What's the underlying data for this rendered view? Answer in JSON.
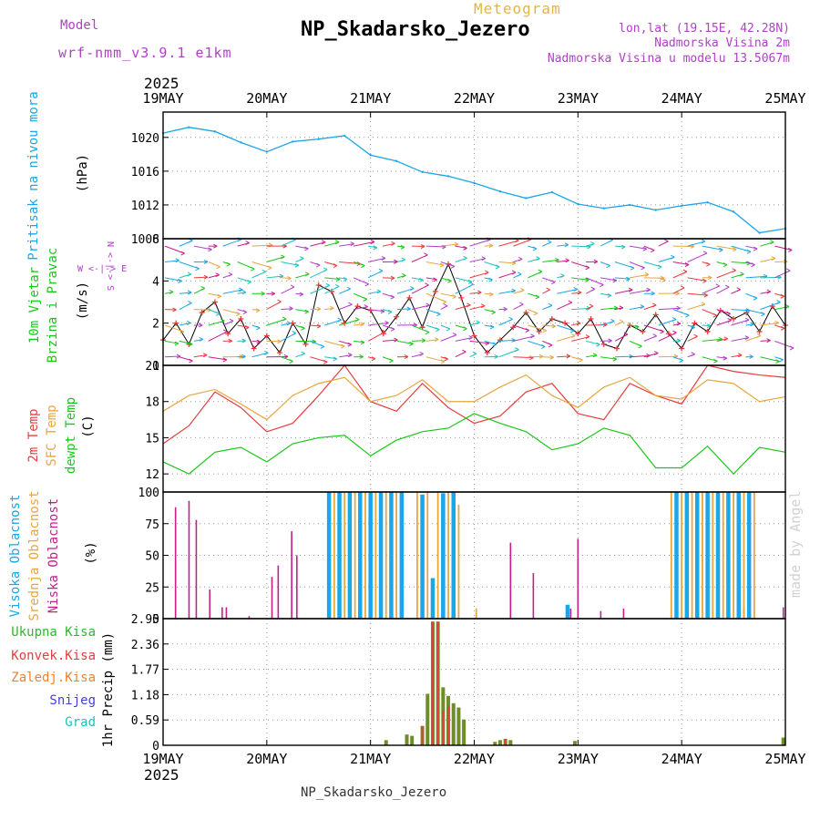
{
  "header": {
    "model_label": "Model",
    "model_name": "wrf-nmm_v3.9.1 e1km",
    "meteogram_label": "Meteogram",
    "station": "NP_Skadarsko_Jezero",
    "lonlat": "lon,lat (19.15E, 42.28N)",
    "elevation": "Nadmorska Visina 2m",
    "model_elevation": "Nadmorska Visina u modelu 13.5067m"
  },
  "footer": {
    "station": "NP_Skadarsko_Jezero",
    "credit": "made by Angel"
  },
  "colors": {
    "pressure": "#1aa6e8",
    "temp2m": "#e83c3c",
    "sfc": "#e6a640",
    "dewpt": "#18c818",
    "high_cloud": "#1aa6e8",
    "mid_cloud": "#e6a640",
    "low_cloud": "#c81e8c",
    "total_precip": "#2eb82e",
    "conv_precip": "#e83c3c",
    "frz_precip": "#f08030",
    "snow": "#4040e0",
    "grad": "#20c0c0",
    "wind_purple": "#b040c8"
  },
  "chart_data": [
    {
      "type": "line",
      "panel": "pressure",
      "ylabel": "Pritisak na nivou mora",
      "unit": "(hPa)",
      "year": "2025",
      "x_ticks": [
        "19MAY",
        "20MAY",
        "21MAY",
        "22MAY",
        "23MAY",
        "24MAY",
        "25MAY"
      ],
      "ylim": [
        1008,
        1023
      ],
      "y_ticks": [
        1008,
        1012,
        1016,
        1020
      ],
      "grid": true,
      "x": [
        0,
        0.25,
        0.5,
        0.75,
        1,
        1.25,
        1.5,
        1.75,
        2,
        2.25,
        2.5,
        2.75,
        3,
        3.25,
        3.5,
        3.75,
        4,
        4.25,
        4.5,
        4.75,
        5,
        5.25,
        5.5,
        5.75,
        6
      ],
      "series": [
        {
          "values": [
            1020.5,
            1021.2,
            1020.7,
            1019.4,
            1018.3,
            1019.5,
            1019.8,
            1020.2,
            1017.9,
            1017.2,
            1015.9,
            1015.4,
            1014.6,
            1013.6,
            1012.8,
            1013.5,
            1012.1,
            1011.6,
            1012.0,
            1011.4,
            1011.9,
            1012.3,
            1011.2,
            1008.7,
            1009.2
          ]
        }
      ]
    },
    {
      "type": "scatter",
      "panel": "wind",
      "ylabel": [
        "10m Vjetar",
        "Brzina i Pravac"
      ],
      "unit": "(m/s)",
      "compass": [
        "W",
        "<-|->",
        "E",
        "N",
        "<-|->",
        "S"
      ],
      "ylim": [
        0,
        6
      ],
      "y_ticks": [
        0,
        2,
        4,
        6
      ],
      "grid": true,
      "x": [
        0,
        0.125,
        0.25,
        0.375,
        0.5,
        0.625,
        0.75,
        0.875,
        1,
        1.125,
        1.25,
        1.375,
        1.5,
        1.625,
        1.75,
        1.875,
        2,
        2.125,
        2.25,
        2.375,
        2.5,
        2.625,
        2.75,
        2.875,
        3,
        3.125,
        3.25,
        3.375,
        3.5,
        3.625,
        3.75,
        3.875,
        4,
        4.125,
        4.25,
        4.375,
        4.5,
        4.625,
        4.75,
        4.875,
        5,
        5.125,
        5.25,
        5.375,
        5.5,
        5.625,
        5.75,
        5.875,
        6
      ],
      "series": [
        {
          "name": "speed",
          "values": [
            1.2,
            2.0,
            1.0,
            2.5,
            3.0,
            1.5,
            2.2,
            0.8,
            1.4,
            0.6,
            2.0,
            1.0,
            3.8,
            3.5,
            2.0,
            2.8,
            2.6,
            1.5,
            2.3,
            3.2,
            1.8,
            3.5,
            4.8,
            3.2,
            1.4,
            0.6,
            1.2,
            1.8,
            2.5,
            1.6,
            2.2,
            2.0,
            1.5,
            2.2,
            1.0,
            0.8,
            1.9,
            1.6,
            2.4,
            1.5,
            0.8,
            2.0,
            1.6,
            2.6,
            2.2,
            2.5,
            1.6,
            2.8,
            1.9
          ]
        }
      ]
    },
    {
      "type": "line",
      "panel": "temperature",
      "ylabel": [
        "2m Temp",
        "SFC Temp",
        "dewpt Temp"
      ],
      "unit": "(C)",
      "ylim": [
        10.5,
        21
      ],
      "y_ticks": [
        12,
        15,
        18,
        21
      ],
      "grid": true,
      "x": [
        0,
        0.25,
        0.5,
        0.75,
        1,
        1.25,
        1.5,
        1.75,
        2,
        2.25,
        2.5,
        2.75,
        3,
        3.25,
        3.5,
        3.75,
        4,
        4.25,
        4.5,
        4.75,
        5,
        5.25,
        5.5,
        5.75,
        6
      ],
      "series": [
        {
          "name": "2m Temp",
          "values": [
            14.5,
            16.0,
            18.8,
            17.5,
            15.5,
            16.2,
            18.5,
            21.0,
            18.0,
            17.2,
            19.5,
            17.5,
            16.2,
            16.8,
            18.8,
            19.5,
            17.0,
            16.5,
            19.5,
            18.5,
            17.8,
            21.0,
            20.5,
            20.2,
            20.0
          ]
        },
        {
          "name": "SFC Temp",
          "values": [
            17.2,
            18.5,
            19.0,
            17.8,
            16.5,
            18.5,
            19.5,
            20.0,
            18.0,
            18.5,
            19.8,
            18.0,
            18.0,
            19.2,
            20.2,
            18.5,
            17.5,
            19.2,
            20.0,
            18.5,
            18.2,
            19.8,
            19.5,
            18.0,
            18.4
          ]
        },
        {
          "name": "dewpt Temp",
          "values": [
            13.0,
            12.0,
            13.8,
            14.2,
            13.0,
            14.5,
            15.0,
            15.2,
            13.5,
            14.8,
            15.5,
            15.8,
            17.0,
            16.2,
            15.5,
            14.0,
            14.5,
            15.8,
            15.2,
            12.5,
            12.5,
            14.3,
            12.0,
            14.2,
            13.8
          ]
        }
      ]
    },
    {
      "type": "bar",
      "panel": "clouds",
      "ylabel": [
        "Visoka Oblacnost",
        "Srednja Oblacnost",
        "Niska Oblacnost"
      ],
      "unit": "(%)",
      "ylim": [
        0,
        100
      ],
      "y_ticks": [
        0,
        25,
        50,
        75,
        100
      ],
      "grid": true,
      "series": [
        {
          "name": "Niska Oblacnost",
          "x": [
            0.12,
            0.25,
            0.32,
            0.45,
            0.57,
            0.61,
            0.83,
            1.05,
            1.11,
            1.24,
            1.29,
            3.35,
            3.57,
            3.93,
            4.0,
            4.22,
            4.44,
            5.6,
            5.98
          ],
          "values": [
            88,
            93,
            78,
            23,
            9,
            9,
            2,
            33,
            42,
            69,
            50,
            60,
            36,
            8,
            63,
            6,
            8,
            9,
            9
          ]
        },
        {
          "name": "Visoka Oblacnost",
          "x": [
            1.6,
            1.7,
            1.8,
            1.9,
            2.0,
            2.1,
            2.2,
            2.3,
            2.5,
            2.6,
            2.7,
            2.8,
            3.9,
            4.95,
            5.05,
            5.15,
            5.25,
            5.35,
            5.45,
            5.55,
            5.65
          ],
          "values": [
            100,
            100,
            100,
            100,
            100,
            100,
            100,
            100,
            98,
            32,
            99,
            100,
            11,
            100,
            100,
            100,
            100,
            100,
            100,
            100,
            100
          ]
        },
        {
          "name": "Srednja Oblacnost",
          "x": [
            1.65,
            1.75,
            1.85,
            1.95,
            2.05,
            2.15,
            2.25,
            2.45,
            2.55,
            2.65,
            2.75,
            2.85,
            3.02,
            4.9,
            5.0,
            5.1,
            5.2,
            5.3,
            5.4,
            5.5,
            5.6,
            5.7
          ],
          "values": [
            100,
            100,
            100,
            100,
            100,
            100,
            100,
            100,
            100,
            100,
            100,
            90,
            8,
            100,
            100,
            100,
            100,
            100,
            100,
            100,
            100,
            100
          ]
        }
      ]
    },
    {
      "type": "bar",
      "panel": "precip",
      "ylabel": [
        "Ukupna Kisa",
        "Konvek.Kisa",
        "Zaledj.Kisa",
        "Snijeg",
        "Grad"
      ],
      "unit": "1hr Precip (mm)",
      "ylim": [
        0,
        2.95
      ],
      "y_ticks": [
        "0",
        "0.59",
        "1.18",
        "1.77",
        "2.36",
        "2.95"
      ],
      "grid": true,
      "series": [
        {
          "name": "Ukupna Kisa",
          "x": [
            2.15,
            2.35,
            2.4,
            2.5,
            2.55,
            2.6,
            2.65,
            2.7,
            2.75,
            2.8,
            2.85,
            2.9,
            3.2,
            3.25,
            3.3,
            3.35,
            3.97,
            5.98
          ],
          "values": [
            0.12,
            0.25,
            0.22,
            0.45,
            1.2,
            2.88,
            2.88,
            1.35,
            1.15,
            0.98,
            0.88,
            0.6,
            0.08,
            0.12,
            0.15,
            0.12,
            0.1,
            0.18
          ]
        },
        {
          "name": "Konvek.Kisa",
          "x": [
            2.5,
            2.6,
            2.65,
            2.7,
            2.75,
            3.3
          ],
          "values": [
            0.45,
            2.88,
            2.88,
            0.8,
            0.9,
            0.15
          ]
        }
      ]
    }
  ]
}
